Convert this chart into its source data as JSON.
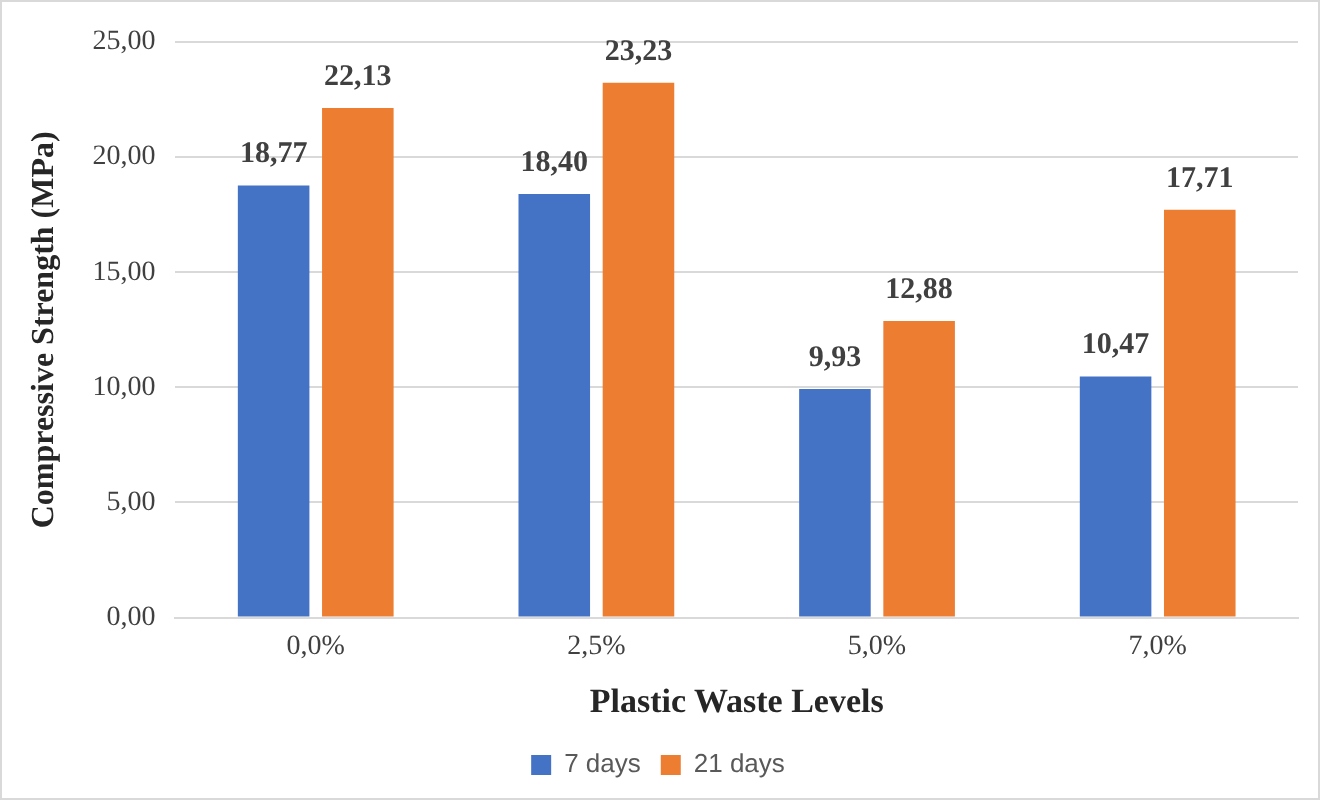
{
  "chart_data": {
    "type": "bar",
    "xlabel": "Plastic Waste Levels",
    "ylabel": "Compressive Strength (MPa)",
    "categories": [
      "0,0%",
      "2,5%",
      "5,0%",
      "7,0%"
    ],
    "series": [
      {
        "name": "7 days",
        "color": "#4472c4",
        "values": [
          18.77,
          18.4,
          9.93,
          10.47
        ],
        "value_labels": [
          "18,77",
          "18,40",
          "9,93",
          "10,47"
        ]
      },
      {
        "name": "21 days",
        "color": "#ed7d31",
        "values": [
          22.13,
          23.23,
          12.88,
          17.71
        ],
        "value_labels": [
          "22,13",
          "23,23",
          "12,88",
          "17,71"
        ]
      }
    ],
    "ylim": [
      0,
      25
    ],
    "yticks": [
      {
        "value": 0,
        "label": "0,00"
      },
      {
        "value": 5,
        "label": "5,00"
      },
      {
        "value": 10,
        "label": "10,00"
      },
      {
        "value": 15,
        "label": "15,00"
      },
      {
        "value": 20,
        "label": "20,00"
      },
      {
        "value": 25,
        "label": "25,00"
      }
    ],
    "grid": "y",
    "legend": "bottom"
  }
}
